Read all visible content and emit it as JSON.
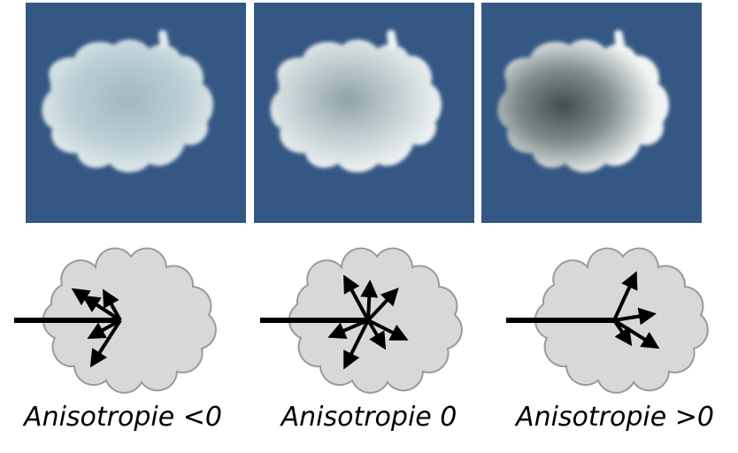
{
  "panels": [
    {
      "caption": "Anisotropie <0"
    },
    {
      "caption": "Anisotropie 0"
    },
    {
      "caption": "Anisotropie >0"
    }
  ],
  "colors": {
    "sky": "#355784",
    "cloud_fill": "#d8d8d8",
    "cloud_outline": "#9a9a9a",
    "arrow": "#000000"
  }
}
